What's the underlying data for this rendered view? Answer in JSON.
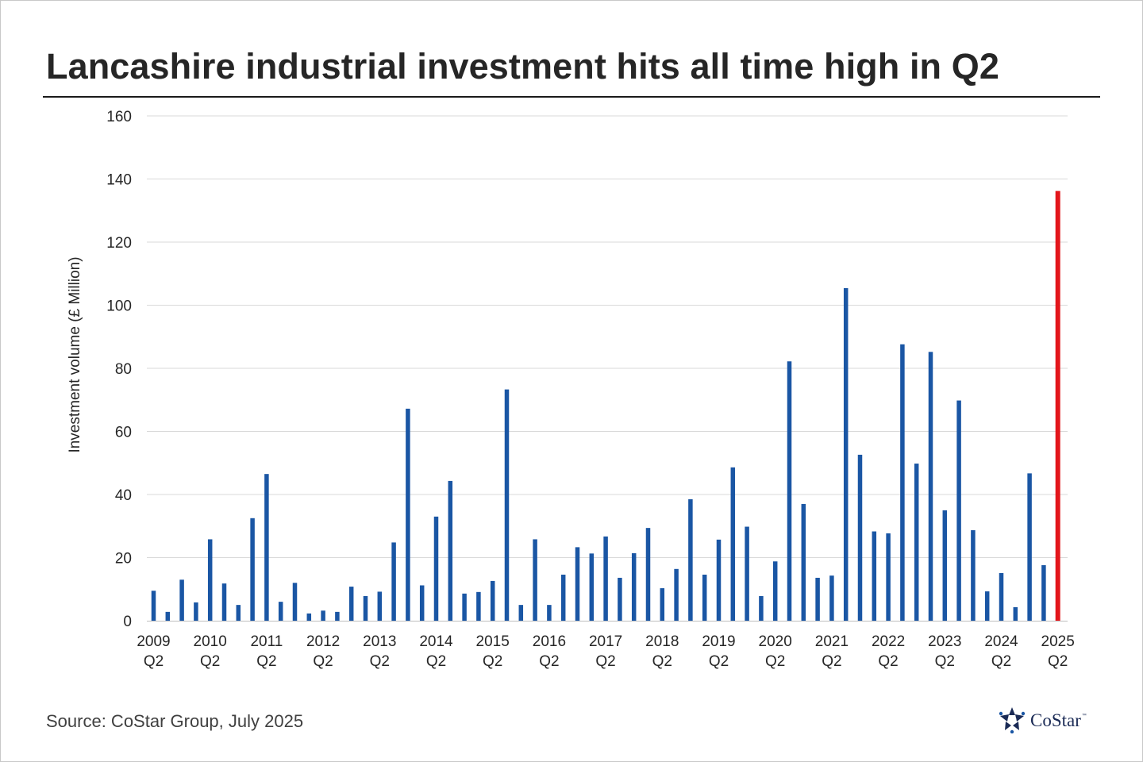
{
  "title": "Lancashire industrial investment hits all time high in Q2",
  "source": "Source: CoStar Group, July 2025",
  "logo": {
    "text": "CoStar",
    "tm": "™",
    "icon": "costar-star-logo-icon"
  },
  "colors": {
    "bar": "#1a56a4",
    "highlight": "#e3161b",
    "grid": "#d9d9d9",
    "text": "#262626"
  },
  "chart_data": {
    "type": "bar",
    "title": "Lancashire industrial investment hits all time high in Q2",
    "xlabel": "",
    "ylabel": "Investment volume (£ Million)",
    "ylim": [
      0,
      160
    ],
    "yticks": [
      0,
      20,
      40,
      60,
      80,
      100,
      120,
      140,
      160
    ],
    "grid": true,
    "x_tick_labels": [
      {
        "year": "2009",
        "quarter": "Q2"
      },
      {
        "year": "2010",
        "quarter": "Q2"
      },
      {
        "year": "2011",
        "quarter": "Q2"
      },
      {
        "year": "2012",
        "quarter": "Q2"
      },
      {
        "year": "2013",
        "quarter": "Q2"
      },
      {
        "year": "2014",
        "quarter": "Q2"
      },
      {
        "year": "2015",
        "quarter": "Q2"
      },
      {
        "year": "2016",
        "quarter": "Q2"
      },
      {
        "year": "2017",
        "quarter": "Q2"
      },
      {
        "year": "2018",
        "quarter": "Q2"
      },
      {
        "year": "2019",
        "quarter": "Q2"
      },
      {
        "year": "2020",
        "quarter": "Q2"
      },
      {
        "year": "2021",
        "quarter": "Q2"
      },
      {
        "year": "2022",
        "quarter": "Q2"
      },
      {
        "year": "2023",
        "quarter": "Q2"
      },
      {
        "year": "2024",
        "quarter": "Q2"
      },
      {
        "year": "2025",
        "quarter": "Q2"
      }
    ],
    "categories": [
      "2009 Q2",
      "2009 Q3",
      "2009 Q4",
      "2010 Q1",
      "2010 Q2",
      "2010 Q3",
      "2010 Q4",
      "2011 Q1",
      "2011 Q2",
      "2011 Q3",
      "2011 Q4",
      "2012 Q1",
      "2012 Q2",
      "2012 Q3",
      "2012 Q4",
      "2013 Q1",
      "2013 Q2",
      "2013 Q3",
      "2013 Q4",
      "2014 Q1",
      "2014 Q2",
      "2014 Q3",
      "2014 Q4",
      "2015 Q1",
      "2015 Q2",
      "2015 Q3",
      "2015 Q4",
      "2016 Q1",
      "2016 Q2",
      "2016 Q3",
      "2016 Q4",
      "2017 Q1",
      "2017 Q2",
      "2017 Q3",
      "2017 Q4",
      "2018 Q1",
      "2018 Q2",
      "2018 Q3",
      "2018 Q4",
      "2019 Q1",
      "2019 Q2",
      "2019 Q3",
      "2019 Q4",
      "2020 Q1",
      "2020 Q2",
      "2020 Q3",
      "2020 Q4",
      "2021 Q1",
      "2021 Q2",
      "2021 Q3",
      "2021 Q4",
      "2022 Q1",
      "2022 Q2",
      "2022 Q3",
      "2022 Q4",
      "2023 Q1",
      "2023 Q2",
      "2023 Q3",
      "2023 Q4",
      "2024 Q1",
      "2024 Q2",
      "2024 Q3",
      "2024 Q4",
      "2025 Q1",
      "2025 Q2"
    ],
    "values": [
      9.5,
      2.8,
      13,
      5.8,
      25.8,
      11.8,
      5,
      32.5,
      46.5,
      6,
      12,
      2.3,
      3.2,
      2.8,
      10.8,
      7.8,
      9.2,
      24.8,
      67.2,
      11.2,
      33,
      44.3,
      8.6,
      9.1,
      12.6,
      73.3,
      5,
      25.8,
      5,
      14.6,
      23.3,
      21.3,
      26.7,
      13.6,
      21.4,
      29.4,
      10.3,
      16.4,
      38.5,
      14.6,
      25.7,
      48.6,
      29.8,
      7.8,
      18.8,
      82.2,
      37,
      13.6,
      14.3,
      105.4,
      52.6,
      28.3,
      27.7,
      87.6,
      49.8,
      85.2,
      35,
      69.8,
      28.7,
      9.3,
      15.1,
      4.3,
      46.7,
      17.6,
      136.2
    ],
    "highlight_index": 64
  }
}
